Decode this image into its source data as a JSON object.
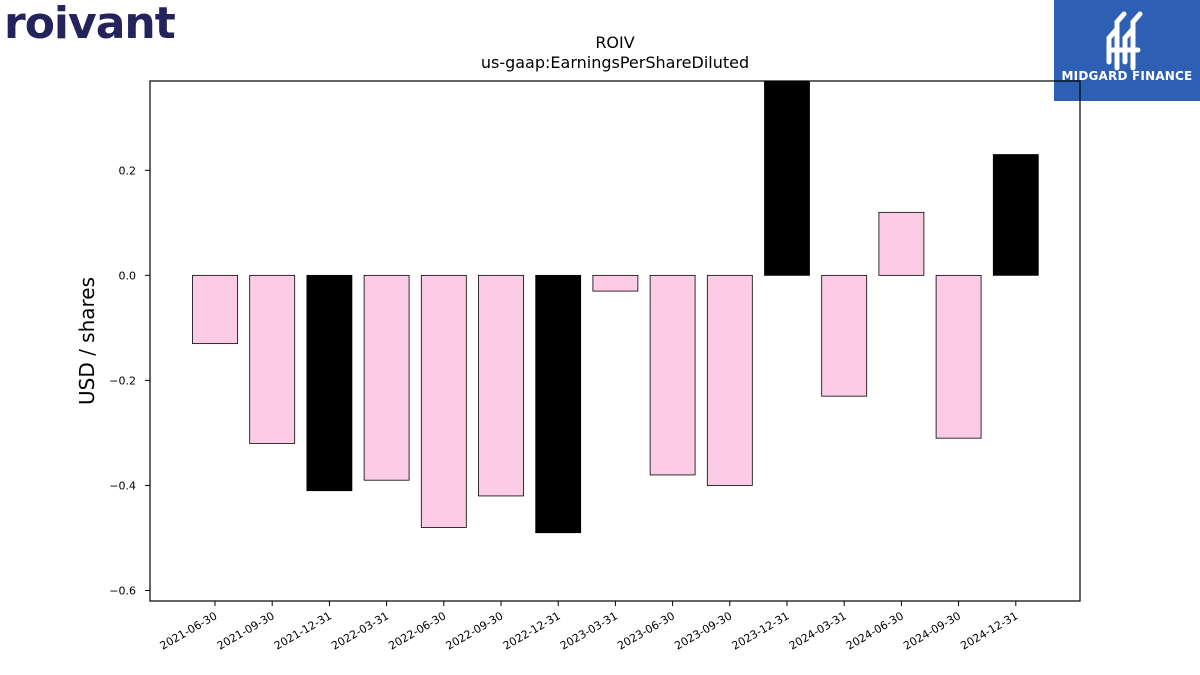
{
  "brand": {
    "left_logo_text": "roivant",
    "left_logo_color": "#24235c",
    "right_logo_text": "MIDGARD FINANCE",
    "right_logo_bg": "#2d5fb3"
  },
  "colors": {
    "negative_fill": "#fccce6",
    "positive_fill": "#000000",
    "bar_edge": "#000000"
  },
  "chart_data": {
    "type": "bar",
    "title": "ROIV",
    "subtitle": "us-gaap:EarningsPerShareDiluted",
    "xlabel": "",
    "ylabel": "USD / shares",
    "categories": [
      "2021-06-30",
      "2021-09-30",
      "2021-12-31",
      "2022-03-31",
      "2022-06-30",
      "2022-09-30",
      "2022-12-31",
      "2023-03-31",
      "2023-06-30",
      "2023-09-30",
      "2023-12-31",
      "2024-03-31",
      "2024-06-30",
      "2024-09-30",
      "2024-12-31"
    ],
    "values": [
      -0.13,
      -0.32,
      -0.41,
      -0.39,
      -0.48,
      -0.42,
      -0.49,
      -0.03,
      -0.38,
      -0.4,
      0.38,
      -0.23,
      0.12,
      -0.31,
      0.23
    ],
    "highlight": [
      false,
      false,
      true,
      false,
      false,
      false,
      true,
      false,
      false,
      false,
      true,
      false,
      false,
      false,
      true
    ],
    "ylim": [
      -0.62,
      0.37
    ],
    "yticks": [
      -0.6,
      -0.4,
      -0.2,
      0.0,
      0.2
    ],
    "ytick_labels": [
      "−0.6",
      "−0.4",
      "−0.2",
      "0.0",
      "0.2"
    ],
    "grid": false,
    "legend": "none"
  }
}
